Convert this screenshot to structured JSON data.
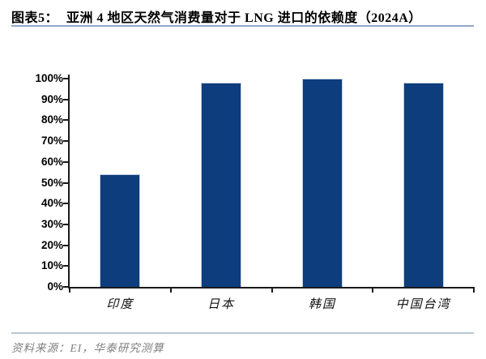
{
  "figure": {
    "label": "图表5：",
    "title": "亚洲 4 地区天然气消费量对于 LNG 进口的依赖度（2024A）"
  },
  "chart_data": {
    "type": "bar",
    "title": "亚洲4地区天然气消费量对于LNG进口的依赖度（2024A）",
    "categories": [
      "印度",
      "日本",
      "韩国",
      "中国台湾"
    ],
    "values": [
      54,
      98,
      100,
      98
    ],
    "unit": "%",
    "xlabel": "",
    "ylabel": "",
    "ylim": [
      0,
      100
    ],
    "ytick_step": 10,
    "ytick_labels": [
      "0%",
      "10%",
      "20%",
      "30%",
      "40%",
      "50%",
      "60%",
      "70%",
      "80%",
      "90%",
      "100%"
    ],
    "grid": false,
    "legend": null,
    "bar_color": "#0d3d7c"
  },
  "source": {
    "text": "资料来源：EI，华泰研究测算"
  },
  "colors": {
    "bar": "#0d3d7c",
    "axis": "#1a1a1a",
    "title_rule": "#8ea8c8",
    "footer_rule": "#b7c8d4",
    "source_text": "#7f7f7f"
  }
}
